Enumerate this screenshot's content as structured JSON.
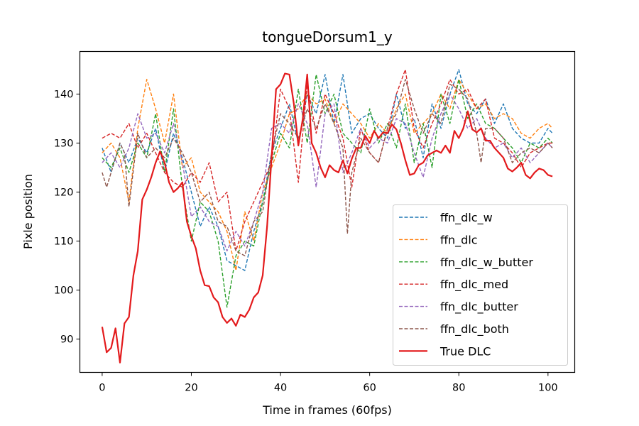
{
  "chart_data": {
    "type": "line",
    "title": "tongueDorsum1_y",
    "xlabel": "Time in frames (60fps)",
    "ylabel": "Pixle position",
    "xlim": [
      -5,
      106
    ],
    "ylim": [
      83.2,
      148.7
    ],
    "xticks": [
      0,
      20,
      40,
      60,
      80,
      100
    ],
    "yticks": [
      90,
      100,
      110,
      120,
      130,
      140
    ],
    "grid": false,
    "legend_position": "lower-right",
    "series": [
      {
        "name": "ffn_dlc_w",
        "color": "#1f77b4",
        "style": "dashed",
        "x": [
          0,
          2,
          4,
          6,
          8,
          10,
          12,
          14,
          16,
          18,
          20,
          22,
          24,
          26,
          28,
          30,
          32,
          34,
          36,
          38,
          40,
          42,
          44,
          46,
          48,
          50,
          52,
          54,
          56,
          58,
          60,
          62,
          64,
          66,
          68,
          70,
          72,
          74,
          76,
          78,
          80,
          82,
          84,
          86,
          88,
          90,
          92,
          94,
          96,
          98,
          100,
          101
        ],
        "values": [
          129,
          124,
          130,
          126,
          131,
          128,
          133,
          124,
          132,
          127,
          120,
          113,
          117,
          113,
          106,
          105,
          104,
          112,
          118,
          128,
          133,
          138,
          130,
          140,
          136,
          144,
          134,
          144,
          132,
          135,
          136,
          133,
          131,
          140,
          133,
          135,
          127,
          138,
          133,
          140,
          145,
          138,
          136,
          139,
          134,
          138,
          133,
          131,
          130,
          130,
          133,
          132
        ]
      },
      {
        "name": "ffn_dlc",
        "color": "#ff7f0e",
        "style": "dashed",
        "x": [
          0,
          2,
          4,
          6,
          8,
          10,
          12,
          14,
          16,
          18,
          20,
          22,
          24,
          26,
          28,
          30,
          32,
          34,
          36,
          38,
          40,
          42,
          44,
          46,
          48,
          50,
          52,
          54,
          56,
          58,
          60,
          62,
          64,
          66,
          68,
          70,
          72,
          74,
          76,
          78,
          80,
          82,
          84,
          86,
          88,
          90,
          92,
          94,
          96,
          98,
          100,
          101
        ],
        "values": [
          128,
          130,
          127,
          118,
          133,
          143,
          137,
          130,
          140,
          125,
          127,
          120,
          118,
          116,
          112,
          104,
          116,
          110,
          120,
          125,
          130,
          136,
          137,
          140,
          138,
          139,
          134,
          138,
          136,
          134,
          131,
          134,
          132,
          137,
          140,
          132,
          134,
          136,
          140,
          137,
          143,
          140,
          137,
          138,
          135,
          136,
          135,
          132,
          131,
          133,
          134,
          133
        ]
      },
      {
        "name": "ffn_dlc_w_butter",
        "color": "#2ca02c",
        "style": "dashed",
        "x": [
          0,
          2,
          4,
          6,
          8,
          10,
          12,
          14,
          16,
          18,
          20,
          22,
          24,
          26,
          28,
          30,
          32,
          34,
          36,
          38,
          40,
          42,
          44,
          46,
          48,
          50,
          52,
          54,
          56,
          58,
          60,
          62,
          64,
          66,
          68,
          70,
          72,
          74,
          76,
          78,
          80,
          82,
          84,
          86,
          88,
          90,
          92,
          94,
          96,
          98,
          100,
          101
        ],
        "values": [
          127,
          125,
          129,
          124,
          130,
          127,
          136,
          124,
          137,
          121,
          110,
          118,
          116,
          110,
          96.5,
          107,
          110,
          109,
          118,
          126,
          132,
          129,
          141,
          130,
          144,
          136,
          140,
          132,
          130,
          128,
          137,
          130,
          134,
          129,
          138,
          126,
          134,
          125,
          140,
          134,
          143,
          135,
          138,
          134,
          133,
          131,
          129,
          126,
          130,
          129,
          131,
          130
        ]
      },
      {
        "name": "ffn_dlc_med",
        "color": "#d62728",
        "style": "dashed",
        "x": [
          0,
          2,
          4,
          6,
          8,
          10,
          12,
          14,
          16,
          18,
          20,
          22,
          24,
          26,
          28,
          30,
          32,
          34,
          36,
          38,
          40,
          42,
          44,
          46,
          48,
          50,
          52,
          54,
          56,
          58,
          60,
          62,
          64,
          66,
          68,
          70,
          72,
          74,
          76,
          78,
          80,
          82,
          84,
          86,
          88,
          90,
          92,
          94,
          96,
          98,
          100,
          101
        ],
        "values": [
          131,
          132,
          131,
          134,
          129,
          132,
          128,
          124,
          122,
          121,
          124,
          122,
          126,
          118,
          120,
          108,
          114,
          118,
          122,
          126,
          141,
          137,
          122,
          142,
          132,
          140,
          136,
          131,
          121,
          133,
          128,
          126,
          133,
          140,
          145,
          133,
          129,
          134,
          138,
          143,
          140,
          141,
          137,
          139,
          131,
          130,
          128,
          125,
          128,
          129,
          130,
          130
        ]
      },
      {
        "name": "ffn_dlc_butter",
        "color": "#9467bd",
        "style": "dashed",
        "x": [
          0,
          2,
          4,
          6,
          8,
          10,
          12,
          14,
          16,
          18,
          20,
          22,
          24,
          26,
          28,
          30,
          32,
          34,
          36,
          38,
          40,
          42,
          44,
          46,
          48,
          50,
          52,
          54,
          56,
          58,
          60,
          62,
          64,
          66,
          68,
          70,
          72,
          74,
          76,
          78,
          80,
          82,
          84,
          86,
          88,
          90,
          92,
          94,
          96,
          98,
          100,
          101
        ],
        "values": [
          126,
          128,
          125,
          129,
          136,
          131,
          132,
          128,
          134,
          126,
          115,
          117,
          114,
          113,
          108,
          112,
          109,
          114,
          120,
          133,
          134,
          132,
          138,
          134,
          121,
          136,
          138,
          124,
          128,
          133,
          129,
          131,
          130,
          135,
          134,
          128,
          123,
          131,
          136,
          140,
          137,
          133,
          135,
          131,
          129,
          130,
          127,
          129,
          126,
          128,
          130,
          129
        ]
      },
      {
        "name": "ffn_dlc_both",
        "color": "#8c564b",
        "style": "dashed",
        "x": [
          0,
          1,
          2,
          4,
          5,
          6,
          8,
          10,
          12,
          14,
          16,
          18,
          20,
          22,
          24,
          26,
          28,
          30,
          32,
          34,
          36,
          38,
          40,
          42,
          44,
          46,
          48,
          50,
          52,
          54,
          55,
          56,
          58,
          60,
          62,
          64,
          66,
          68,
          70,
          72,
          74,
          76,
          78,
          80,
          82,
          84,
          85,
          86,
          88,
          90,
          92,
          94,
          96,
          98,
          100,
          101
        ],
        "values": [
          124,
          121,
          124,
          130,
          128,
          117,
          132,
          127,
          129,
          127,
          131,
          128,
          124,
          118,
          120,
          114,
          113,
          108,
          107,
          114,
          116,
          128,
          136,
          134,
          131,
          137,
          133,
          138,
          134,
          129,
          111.5,
          124,
          131,
          128,
          126,
          133,
          136,
          143,
          137,
          132,
          136,
          134,
          142,
          141,
          139,
          132,
          126,
          133,
          133,
          131,
          126,
          128,
          129,
          128,
          130,
          129
        ]
      },
      {
        "name": "True DLC",
        "color": "#e31a1c",
        "style": "solid",
        "x": [
          0,
          1,
          2,
          3,
          4,
          5,
          6,
          7,
          8,
          9,
          10,
          11,
          12,
          13,
          14,
          15,
          16,
          17,
          18,
          19,
          20,
          21,
          22,
          23,
          24,
          25,
          26,
          27,
          28,
          29,
          30,
          31,
          32,
          33,
          34,
          35,
          36,
          37,
          38,
          39,
          40,
          41,
          42,
          43,
          44,
          45,
          46,
          47,
          48,
          49,
          50,
          51,
          52,
          53,
          54,
          55,
          56,
          57,
          58,
          59,
          60,
          61,
          62,
          63,
          64,
          65,
          66,
          67,
          68,
          69,
          70,
          71,
          72,
          73,
          74,
          75,
          76,
          77,
          78,
          79,
          80,
          81,
          82,
          83,
          84,
          85,
          86,
          87,
          88,
          89,
          90,
          91,
          92,
          93,
          94,
          95,
          96,
          97,
          98,
          99,
          100,
          101
        ],
        "values": [
          92.5,
          87.3,
          88.2,
          92.2,
          85.2,
          93.2,
          94.5,
          103,
          108,
          118.5,
          120.5,
          123,
          126,
          128.3,
          126,
          122,
          120,
          120.8,
          122,
          114,
          111,
          108.5,
          104,
          101,
          100.8,
          98.5,
          97.5,
          94.5,
          93.3,
          94.2,
          92.7,
          95,
          94.5,
          96,
          98.5,
          99.5,
          103,
          113,
          127,
          141,
          142,
          144.2,
          144,
          138,
          129.5,
          135,
          144,
          130,
          128,
          125,
          123,
          125.5,
          124.5,
          124,
          126.5,
          123.8,
          126.8,
          129,
          129,
          131.5,
          130,
          132.5,
          131,
          132.2,
          132,
          133.8,
          132.8,
          130,
          126.5,
          123.5,
          123.8,
          125.5,
          126,
          127.5,
          128,
          128.5,
          128,
          129.5,
          128,
          132.5,
          131,
          133,
          136.5,
          132.8,
          132.2,
          133,
          130.5,
          130.5,
          129,
          128,
          127,
          124.8,
          124.2,
          125,
          126,
          123.5,
          122.8,
          124,
          124.8,
          124.5,
          123.5,
          123.2
        ]
      }
    ]
  }
}
